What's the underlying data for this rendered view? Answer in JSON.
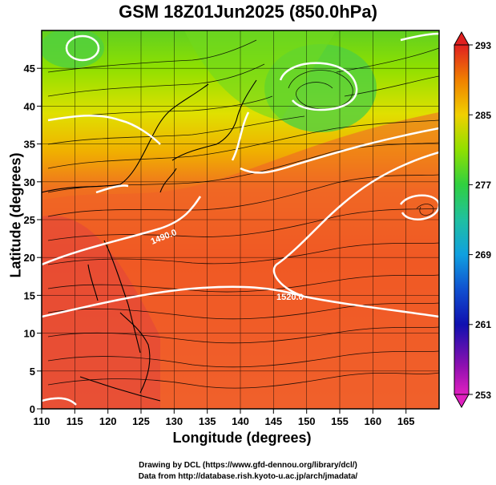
{
  "title": "GSM 18Z01Jun2025 (850.0hPa)",
  "axes": {
    "xlabel": "Longitude (degrees)",
    "ylabel": "Latitude  (degrees)",
    "x_ticks": [
      "110",
      "115",
      "120",
      "125",
      "130",
      "135",
      "140",
      "145",
      "150",
      "155",
      "160",
      "165"
    ],
    "y_ticks": [
      "0",
      "5",
      "10",
      "15",
      "20",
      "25",
      "30",
      "35",
      "40",
      "45"
    ],
    "x_range": [
      110,
      170
    ],
    "y_range": [
      0,
      50
    ]
  },
  "colorbar": {
    "ticks": [
      "293",
      "285",
      "277",
      "269",
      "261",
      "253"
    ],
    "min": 253,
    "max": 293,
    "colors": [
      "#e020c0",
      "#6010b0",
      "#1010b0",
      "#1060e0",
      "#20b0e0",
      "#20d080",
      "#40d020",
      "#a0e000",
      "#f0e000",
      "#f0a000",
      "#f06000",
      "#e02020"
    ]
  },
  "contour_labels": [
    "1490.0",
    "1520.0"
  ],
  "footer": {
    "line1": "Drawing by DCL (https://www.gfd-dennou.org/library/dcl/)",
    "line2": "Data from http://database.rish.kyoto-u.ac.jp/arch/jmadata/"
  }
}
